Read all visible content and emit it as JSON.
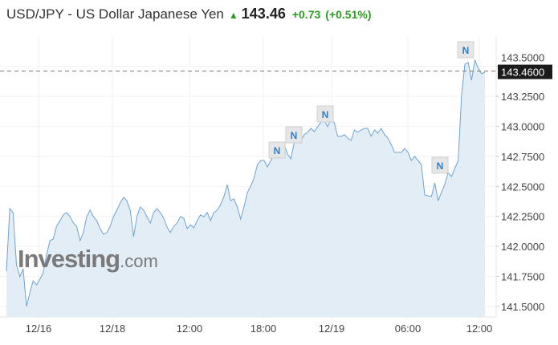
{
  "header": {
    "title": "USD/JPY - US Dollar Japanese Yen",
    "direction_icon": "up-arrow-icon",
    "price": "143.46",
    "change": "+0.73",
    "change_pct": "(+0.51%)",
    "up_color": "#2a9d1f"
  },
  "watermark": {
    "brand": "Investing",
    "suffix": ".com"
  },
  "chart_data": {
    "type": "area",
    "current_price_label": "143.4600",
    "current_price": 143.46,
    "ylim": [
      141.42,
      143.62
    ],
    "y_ticks": [
      "141.5000",
      "141.7500",
      "142.0000",
      "142.2500",
      "142.5000",
      "142.7500",
      "143.0000",
      "143.2500",
      "143.5000"
    ],
    "x_ticks": [
      "12/16",
      "12/18",
      "12:00",
      "18:00",
      "12/19",
      "06:00",
      "12:00"
    ],
    "grid": true,
    "line_color": "#6fa3d1",
    "fill_color": "#e3edf6",
    "news_markers": [
      {
        "label": "N"
      },
      {
        "label": "N"
      },
      {
        "label": "N"
      },
      {
        "label": "N"
      },
      {
        "label": "N"
      }
    ],
    "values": [
      141.794,
      142.315,
      142.282,
      141.847,
      141.747,
      141.814,
      141.5,
      141.614,
      141.714,
      141.68,
      141.727,
      141.781,
      141.928,
      142.048,
      142.061,
      142.168,
      142.215,
      142.262,
      142.282,
      142.248,
      142.195,
      142.168,
      142.048,
      142.115,
      142.248,
      142.302,
      142.248,
      142.215,
      142.148,
      142.101,
      142.115,
      142.168,
      142.248,
      142.302,
      142.362,
      142.408,
      142.382,
      142.302,
      142.081,
      142.248,
      142.328,
      142.302,
      142.248,
      142.195,
      142.282,
      142.315,
      142.282,
      142.235,
      142.161,
      142.115,
      142.168,
      142.195,
      142.248,
      142.235,
      142.148,
      142.181,
      142.155,
      142.215,
      142.262,
      142.248,
      142.282,
      142.215,
      142.282,
      142.302,
      142.348,
      142.415,
      142.515,
      142.382,
      142.395,
      142.328,
      142.228,
      142.328,
      142.449,
      142.502,
      142.569,
      142.682,
      142.716,
      142.716,
      142.662,
      142.716,
      142.769,
      142.816,
      142.796,
      142.849,
      142.769,
      142.729,
      142.863,
      142.903,
      142.883,
      142.93,
      142.95,
      142.983,
      142.956,
      142.996,
      143.036,
      143.05,
      142.996,
      143.063,
      143.03,
      142.916,
      142.916,
      142.93,
      142.903,
      142.883,
      142.97,
      142.95,
      142.97,
      142.983,
      142.983,
      142.916,
      142.97,
      142.943,
      142.983,
      142.93,
      142.903,
      142.849,
      142.783,
      142.783,
      142.783,
      142.816,
      142.783,
      142.716,
      142.749,
      142.716,
      142.682,
      142.429,
      142.422,
      142.415,
      142.529,
      142.382,
      142.449,
      142.515,
      142.616,
      142.582,
      142.649,
      142.716,
      143.25,
      143.517,
      143.531,
      143.384,
      143.551,
      143.484,
      143.437,
      143.451
    ]
  }
}
